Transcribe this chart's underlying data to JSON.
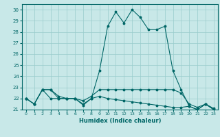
{
  "xlabel": "Humidex (Indice chaleur)",
  "xlim": [
    -0.5,
    23.5
  ],
  "ylim": [
    21.0,
    30.5
  ],
  "yticks": [
    21,
    22,
    23,
    24,
    25,
    26,
    27,
    28,
    29,
    30
  ],
  "xticks": [
    0,
    1,
    2,
    3,
    4,
    5,
    6,
    7,
    8,
    9,
    10,
    11,
    12,
    13,
    14,
    15,
    16,
    17,
    18,
    19,
    20,
    21,
    22,
    23
  ],
  "background_color": "#c8e8e8",
  "grid_color": "#99cccc",
  "line_color": "#006666",
  "line1_y": [
    22.0,
    21.5,
    22.8,
    22.8,
    22.0,
    22.0,
    22.0,
    21.5,
    22.0,
    24.5,
    28.5,
    29.8,
    28.8,
    30.0,
    29.3,
    28.2,
    28.2,
    28.5,
    24.5,
    22.8,
    21.3,
    21.0,
    21.5,
    21.0
  ],
  "line2_y": [
    22.0,
    21.5,
    22.8,
    22.8,
    22.2,
    22.0,
    22.0,
    21.8,
    22.2,
    22.8,
    22.8,
    22.8,
    22.8,
    22.8,
    22.8,
    22.8,
    22.8,
    22.8,
    22.8,
    22.5,
    21.5,
    21.2,
    21.5,
    21.1
  ],
  "line3_y": [
    22.0,
    21.5,
    22.8,
    22.0,
    22.0,
    22.0,
    22.0,
    21.4,
    22.0,
    22.2,
    22.0,
    21.9,
    21.8,
    21.7,
    21.6,
    21.5,
    21.4,
    21.3,
    21.2,
    21.2,
    21.3,
    21.0,
    21.5,
    21.0
  ]
}
